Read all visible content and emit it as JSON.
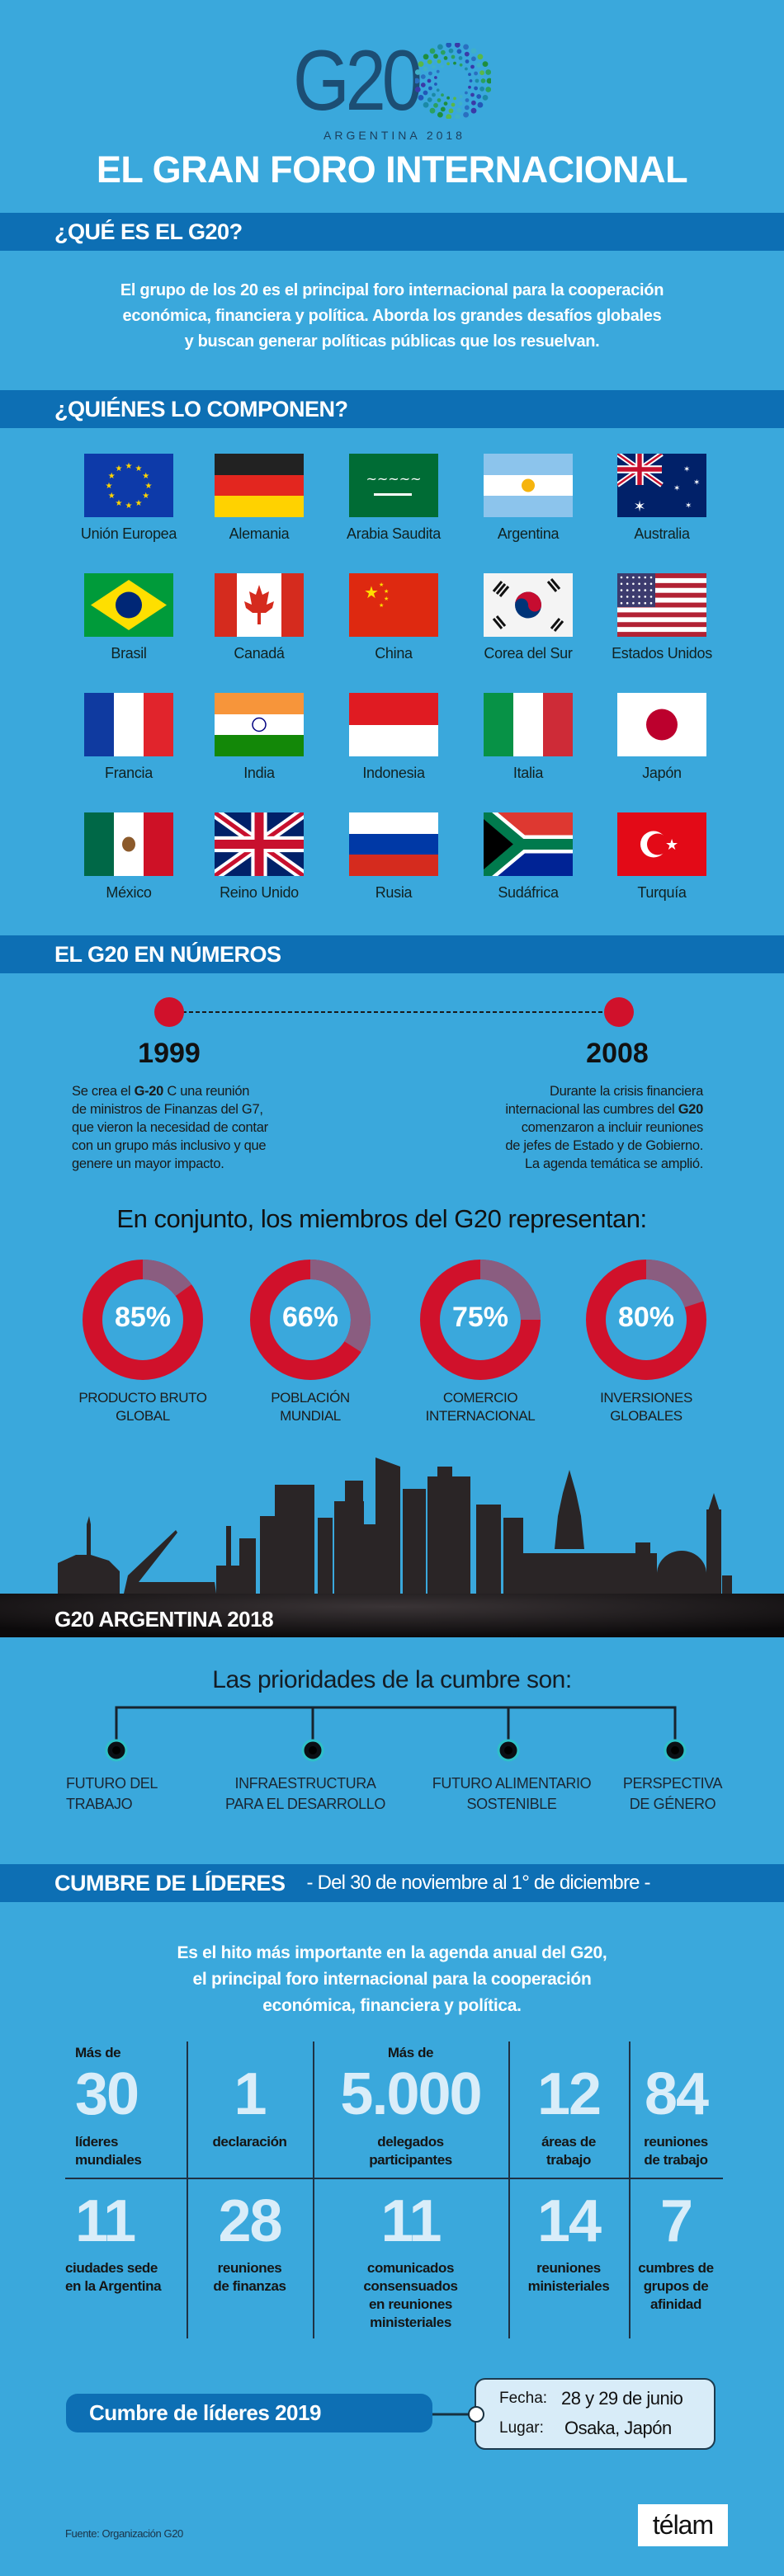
{
  "logo": {
    "text": "G20",
    "subtitle": "ARGENTINA 2018",
    "colors": [
      "#1e8e3e",
      "#2aa060",
      "#1b8aa6",
      "#2258b8",
      "#3a3aa8",
      "#2a6fc0",
      "#3fb0c8",
      "#59b848"
    ]
  },
  "title": "EL GRAN FORO INTERNACIONAL",
  "que_es": {
    "heading": "¿QUÉ ES EL G20?",
    "lines": [
      "El grupo de los 20 es el principal foro internacional para la cooperación",
      "económica, financiera y política. Aborda los grandes desafíos globales",
      "y buscan generar políticas públicas que los  resuelvan."
    ]
  },
  "quienes": {
    "heading": "¿QUIÉNES LO COMPONEN?",
    "members": [
      {
        "name": "Unión Europea",
        "flag": "eu"
      },
      {
        "name": "Alemania",
        "flag": "de"
      },
      {
        "name": "Arabia Saudita",
        "flag": "sa"
      },
      {
        "name": "Argentina",
        "flag": "ar"
      },
      {
        "name": "Australia",
        "flag": "au"
      },
      {
        "name": "Brasil",
        "flag": "br"
      },
      {
        "name": "Canadá",
        "flag": "ca"
      },
      {
        "name": "China",
        "flag": "cn"
      },
      {
        "name": "Corea del Sur",
        "flag": "kr"
      },
      {
        "name": "Estados Unidos",
        "flag": "us"
      },
      {
        "name": "Francia",
        "flag": "fr"
      },
      {
        "name": "India",
        "flag": "in"
      },
      {
        "name": "Indonesia",
        "flag": "id"
      },
      {
        "name": "Italia",
        "flag": "it"
      },
      {
        "name": "Japón",
        "flag": "jp"
      },
      {
        "name": "México",
        "flag": "mx"
      },
      {
        "name": "Reino Unido",
        "flag": "gb"
      },
      {
        "name": "Rusia",
        "flag": "ru"
      },
      {
        "name": "Sudáfrica",
        "flag": "za"
      },
      {
        "name": "Turquía",
        "flag": "tr"
      }
    ]
  },
  "numeros": {
    "heading": "EL G20 EN NÚMEROS",
    "timeline": [
      {
        "year": "1999",
        "lines": [
          "Se crea el |G-20| C una reunión",
          "de ministros de Finanzas del G7,",
          "que vieron la necesidad de contar",
          "con un grupo más inclusivo y que",
          "genere un mayor impacto."
        ]
      },
      {
        "year": "2008",
        "lines": [
          "Durante la crisis financiera",
          "internacional las cumbres del |G20|",
          "comenzaron a incluir reuniones",
          "de jefes de Estado y de Gobierno.",
          "La agenda temática se amplió."
        ]
      }
    ],
    "subtitle": "En conjunto, los miembros del G20 representan:",
    "donuts": [
      {
        "value": 85,
        "text": "85%",
        "label": [
          "PRODUCTO BRUTO",
          "GLOBAL"
        ]
      },
      {
        "value": 66,
        "text": "66%",
        "label": [
          "POBLACIÓN",
          "MUNDIAL"
        ]
      },
      {
        "value": 75,
        "text": "75%",
        "label": [
          "COMERCIO",
          "INTERNACIONAL"
        ]
      },
      {
        "value": 80,
        "text": "80%",
        "label": [
          "INVERSIONES",
          "GLOBALES"
        ]
      }
    ],
    "colors": {
      "filled": "#d0112b",
      "remaining": "#8a5d80"
    }
  },
  "argentina": {
    "banner": "G20 ARGENTINA 2018",
    "priorities_title": "Las prioridades de la cumbre son:",
    "priorities": [
      [
        "FUTURO DEL",
        "TRABAJO"
      ],
      [
        "INFRAESTRUCTURA",
        "PARA EL DESARROLLO"
      ],
      [
        "FUTURO ALIMENTARIO",
        "SOSTENIBLE"
      ],
      [
        "PERSPECTIVA",
        "DE GÉNERO"
      ]
    ]
  },
  "cumbre": {
    "heading": "CUMBRE DE LÍDERES",
    "dates": "- Del 30 de noviembre al 1° de diciembre -",
    "lines": [
      "Es el hito más importante en la agenda anual del G20,",
      "el principal foro internacional para la cooperación",
      "económica, financiera y política."
    ],
    "row1": [
      {
        "pre": "Más de",
        "num": "30",
        "label": [
          "líderes",
          "mundiales"
        ]
      },
      {
        "pre": "",
        "num": "1",
        "label": [
          "declaración"
        ]
      },
      {
        "pre": "Más de",
        "num": "5.000",
        "label": [
          "delegados",
          "participantes"
        ]
      },
      {
        "pre": "",
        "num": "12",
        "label": [
          "áreas de",
          "trabajo"
        ]
      },
      {
        "pre": "",
        "num": "84",
        "label": [
          "reuniones",
          "de trabajo"
        ]
      }
    ],
    "row2": [
      {
        "num": "11",
        "label": [
          "ciudades sede",
          "en la Argentina"
        ]
      },
      {
        "num": "28",
        "label": [
          "reuniones",
          "de finanzas"
        ]
      },
      {
        "num": "11",
        "label": [
          "comunicados",
          "consensuados",
          "en reuniones",
          "ministeriales"
        ]
      },
      {
        "num": "14",
        "label": [
          "reuniones",
          "ministeriales"
        ]
      },
      {
        "num": "7",
        "label": [
          "cumbres de",
          "grupos de",
          "afinidad"
        ]
      }
    ]
  },
  "next": {
    "title": "Cumbre de líderes 2019",
    "fecha_label": "Fecha:",
    "fecha": "28 y 29 de junio",
    "lugar_label": "Lugar:",
    "lugar": "Osaka, Japón"
  },
  "footer": {
    "source": "Fuente: Organización G20",
    "brand": "télam"
  }
}
